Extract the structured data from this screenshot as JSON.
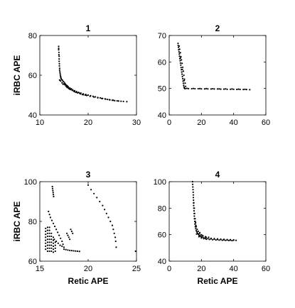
{
  "chart_data": [
    {
      "type": "scatter",
      "title": "1",
      "xlabel": "",
      "ylabel": "iRBC APE",
      "xlim": [
        10,
        30
      ],
      "ylim": [
        40,
        80
      ],
      "xticks": [
        10,
        20,
        30
      ],
      "yticks": [
        40,
        60,
        80
      ],
      "x_tick_labels": [
        "10",
        "20",
        "30"
      ],
      "y_tick_labels": [
        "40",
        "60",
        "80"
      ],
      "grid": false,
      "points": [
        [
          13.9,
          74.5
        ],
        [
          13.9,
          73.5
        ],
        [
          13.9,
          72.8
        ],
        [
          13.95,
          71.5
        ],
        [
          13.95,
          70.3
        ],
        [
          14.0,
          69.5
        ],
        [
          14.0,
          68.2
        ],
        [
          14.0,
          67.0
        ],
        [
          14.05,
          65.8
        ],
        [
          14.05,
          64.7
        ],
        [
          14.1,
          63.5
        ],
        [
          14.1,
          62.6
        ],
        [
          14.15,
          61.7
        ],
        [
          14.2,
          60.9
        ],
        [
          14.25,
          60.1
        ],
        [
          14.3,
          59.4
        ],
        [
          14.35,
          58.9
        ],
        [
          14.4,
          58.3
        ],
        [
          14.1,
          57.6
        ],
        [
          14.3,
          57.1
        ],
        [
          14.5,
          57.9
        ],
        [
          14.7,
          57.4
        ],
        [
          14.9,
          56.8
        ],
        [
          15.1,
          56.2
        ],
        [
          15.3,
          55.6
        ],
        [
          15.5,
          55.0
        ],
        [
          15.7,
          54.6
        ],
        [
          15.9,
          54.1
        ],
        [
          16.2,
          53.6
        ],
        [
          16.5,
          53.2
        ],
        [
          16.8,
          52.7
        ],
        [
          17.2,
          52.2
        ],
        [
          17.6,
          51.8
        ],
        [
          18.0,
          51.4
        ],
        [
          18.5,
          51.0
        ],
        [
          19.0,
          50.6
        ],
        [
          19.5,
          50.3
        ],
        [
          20.0,
          50.0
        ],
        [
          20.5,
          49.7
        ],
        [
          21.0,
          49.4
        ],
        [
          21.5,
          49.1
        ],
        [
          22.0,
          48.8
        ],
        [
          22.5,
          48.6
        ],
        [
          23.0,
          48.3
        ],
        [
          23.5,
          48.1
        ],
        [
          24.0,
          47.8
        ],
        [
          24.5,
          47.6
        ],
        [
          25.0,
          47.4
        ],
        [
          25.5,
          47.2
        ],
        [
          26.0,
          47.1
        ],
        [
          26.3,
          47.0
        ],
        [
          26.8,
          46.9
        ],
        [
          27.3,
          46.8
        ],
        [
          28.0,
          46.7
        ],
        [
          15.0,
          55.6
        ],
        [
          15.4,
          54.5
        ],
        [
          15.8,
          53.7
        ],
        [
          16.2,
          53.0
        ],
        [
          16.7,
          52.4
        ],
        [
          17.2,
          51.7
        ],
        [
          17.8,
          51.1
        ],
        [
          18.4,
          50.6
        ],
        [
          19.0,
          50.2
        ],
        [
          19.7,
          49.8
        ],
        [
          20.4,
          49.4
        ],
        [
          21.2,
          49.0
        ],
        [
          22.0,
          48.6
        ],
        [
          22.8,
          48.3
        ],
        [
          23.6,
          48.0
        ],
        [
          24.4,
          47.7
        ],
        [
          25.2,
          47.4
        ],
        [
          14.6,
          56.2
        ],
        [
          14.8,
          55.5
        ],
        [
          15.2,
          55.2
        ],
        [
          15.6,
          54.0
        ],
        [
          16.0,
          53.3
        ],
        [
          16.4,
          52.8
        ],
        [
          17.0,
          52.0
        ],
        [
          17.5,
          51.4
        ],
        [
          18.2,
          51.0
        ],
        [
          18.8,
          50.3
        ],
        [
          19.4,
          50.0
        ]
      ]
    },
    {
      "type": "scatter",
      "title": "2",
      "xlabel": "",
      "ylabel": "",
      "xlim": [
        0,
        60
      ],
      "ylim": [
        40,
        70
      ],
      "xticks": [
        0,
        20,
        40,
        60
      ],
      "yticks": [
        40,
        50,
        60,
        70
      ],
      "x_tick_labels": [
        "0",
        "20",
        "40",
        "60"
      ],
      "y_tick_labels": [
        "40",
        "50",
        "60",
        "70"
      ],
      "grid": false,
      "points": [
        [
          5.5,
          67.0
        ],
        [
          5.6,
          66.2
        ],
        [
          5.8,
          65.5
        ],
        [
          5.9,
          64.6
        ],
        [
          6.1,
          63.8
        ],
        [
          6.3,
          63.0
        ],
        [
          6.4,
          62.2
        ],
        [
          6.6,
          61.3
        ],
        [
          6.8,
          60.5
        ],
        [
          7.0,
          59.6
        ],
        [
          7.2,
          58.8
        ],
        [
          7.4,
          57.9
        ],
        [
          7.6,
          57.1
        ],
        [
          7.8,
          56.2
        ],
        [
          8.0,
          55.4
        ],
        [
          8.2,
          54.5
        ],
        [
          8.4,
          53.7
        ],
        [
          8.6,
          52.8
        ],
        [
          8.8,
          52.0
        ],
        [
          9.0,
          51.2
        ],
        [
          9.2,
          50.6
        ],
        [
          9.4,
          50.2
        ],
        [
          9.6,
          50.0
        ],
        [
          6.2,
          66.0
        ],
        [
          6.5,
          64.8
        ],
        [
          6.9,
          63.5
        ],
        [
          7.3,
          62.0
        ],
        [
          7.6,
          60.8
        ],
        [
          8.0,
          59.5
        ],
        [
          8.4,
          58.0
        ],
        [
          8.8,
          56.5
        ],
        [
          9.1,
          55.0
        ],
        [
          9.5,
          53.5
        ],
        [
          9.9,
          52.0
        ],
        [
          10.2,
          50.8
        ],
        [
          7.0,
          61.5
        ],
        [
          8.2,
          57.2
        ],
        [
          9.3,
          53.0
        ],
        [
          10,
          49.95
        ],
        [
          12,
          49.95
        ],
        [
          14,
          49.9
        ],
        [
          16,
          49.9
        ],
        [
          18,
          49.9
        ],
        [
          20,
          49.85
        ],
        [
          22,
          49.85
        ],
        [
          24,
          49.85
        ],
        [
          26,
          49.8
        ],
        [
          28,
          49.8
        ],
        [
          30,
          49.8
        ],
        [
          32,
          49.75
        ],
        [
          34,
          49.75
        ],
        [
          36,
          49.7
        ],
        [
          38,
          49.7
        ],
        [
          40,
          49.7
        ],
        [
          42,
          49.65
        ],
        [
          44,
          49.65
        ],
        [
          46,
          49.6
        ],
        [
          48,
          49.6
        ],
        [
          50,
          49.55
        ],
        [
          11,
          50.05
        ],
        [
          15,
          50.0
        ],
        [
          19,
          49.95
        ],
        [
          23,
          49.95
        ],
        [
          27,
          49.9
        ],
        [
          31,
          49.85
        ],
        [
          35,
          49.85
        ],
        [
          39,
          49.8
        ],
        [
          43,
          49.75
        ],
        [
          47,
          49.7
        ]
      ]
    },
    {
      "type": "scatter",
      "title": "3",
      "xlabel": "Retic APE",
      "ylabel": "iRBC APE",
      "xlim": [
        15,
        25
      ],
      "ylim": [
        60,
        100
      ],
      "xticks": [
        15,
        20,
        25
      ],
      "yticks": [
        60,
        80,
        100
      ],
      "x_tick_labels": [
        "15",
        "20",
        "25"
      ],
      "y_tick_labels": [
        "60",
        "80",
        "100"
      ],
      "grid": false,
      "points": [
        [
          15.6,
          66
        ],
        [
          15.6,
          67.5
        ],
        [
          15.6,
          69
        ],
        [
          15.6,
          70.5
        ],
        [
          15.6,
          72
        ],
        [
          15.6,
          73.5
        ],
        [
          15.6,
          75
        ],
        [
          15.6,
          76.5
        ],
        [
          15.8,
          65
        ],
        [
          15.8,
          66.5
        ],
        [
          15.8,
          68
        ],
        [
          15.8,
          69.5
        ],
        [
          15.8,
          71
        ],
        [
          15.8,
          72.5
        ],
        [
          15.8,
          74
        ],
        [
          15.8,
          75.5
        ],
        [
          15.8,
          77
        ],
        [
          16.0,
          65
        ],
        [
          16.0,
          66.5
        ],
        [
          16.0,
          68
        ],
        [
          16.0,
          69.5
        ],
        [
          16.0,
          71
        ],
        [
          16.0,
          72.5
        ],
        [
          16.0,
          74
        ],
        [
          16.0,
          75.5
        ],
        [
          16.0,
          77
        ],
        [
          16.2,
          65
        ],
        [
          16.2,
          66.5
        ],
        [
          16.2,
          68
        ],
        [
          16.2,
          69.5
        ],
        [
          16.2,
          71
        ],
        [
          16.2,
          72.5
        ],
        [
          16.2,
          74
        ],
        [
          16.4,
          64.5
        ],
        [
          16.4,
          66
        ],
        [
          16.4,
          67.5
        ],
        [
          16.4,
          69
        ],
        [
          16.4,
          70.5
        ],
        [
          16.4,
          72
        ],
        [
          16.6,
          65
        ],
        [
          16.6,
          66.5
        ],
        [
          16.6,
          68
        ],
        [
          16.6,
          69.5
        ],
        [
          15.9,
          85
        ],
        [
          16.0,
          83.5
        ],
        [
          16.1,
          82
        ],
        [
          16.25,
          80.5
        ],
        [
          16.4,
          79
        ],
        [
          16.55,
          77.5
        ],
        [
          16.7,
          76
        ],
        [
          16.85,
          74.5
        ],
        [
          17.0,
          73
        ],
        [
          17.15,
          71.5
        ],
        [
          17.3,
          70
        ],
        [
          17.4,
          68.5
        ],
        [
          17.5,
          67
        ],
        [
          16.5,
          71
        ],
        [
          16.7,
          70
        ],
        [
          16.9,
          69
        ],
        [
          17.1,
          68
        ],
        [
          17.3,
          67.5
        ],
        [
          17.5,
          66
        ],
        [
          17.7,
          65.8
        ],
        [
          17.9,
          65.6
        ],
        [
          18.1,
          65.4
        ],
        [
          18.3,
          65.3
        ],
        [
          18.5,
          65.2
        ],
        [
          18.7,
          65.1
        ],
        [
          18.9,
          65.0
        ],
        [
          19.1,
          64.9
        ],
        [
          17.8,
          74
        ],
        [
          17.9,
          73
        ],
        [
          18.0,
          72
        ],
        [
          18.1,
          71
        ],
        [
          18.2,
          76
        ],
        [
          18.3,
          75
        ],
        [
          18.4,
          74
        ],
        [
          16.3,
          97.5
        ],
        [
          16.32,
          96.5
        ],
        [
          16.35,
          95.5
        ],
        [
          16.38,
          94.5
        ],
        [
          16.4,
          93.5
        ],
        [
          16.43,
          92.5
        ],
        [
          20.0,
          98.3
        ],
        [
          20.3,
          96
        ],
        [
          20.6,
          94
        ],
        [
          20.9,
          92
        ],
        [
          21.2,
          90
        ],
        [
          21.5,
          88
        ],
        [
          21.7,
          86
        ],
        [
          21.9,
          84
        ],
        [
          22.1,
          82
        ],
        [
          22.3,
          80
        ],
        [
          22.5,
          78
        ],
        [
          22.6,
          76
        ],
        [
          22.7,
          74
        ],
        [
          22.8,
          72
        ],
        [
          22.85,
          70
        ],
        [
          22.9,
          67
        ],
        [
          24.9,
          65
        ]
      ]
    },
    {
      "type": "scatter",
      "title": "4",
      "xlabel": "Retic APE",
      "ylabel": "",
      "xlim": [
        0,
        60
      ],
      "ylim": [
        40,
        100
      ],
      "xticks": [
        0,
        20,
        40,
        60
      ],
      "yticks": [
        40,
        60,
        80,
        100
      ],
      "x_tick_labels": [
        "0",
        "20",
        "40",
        "60"
      ],
      "y_tick_labels": [
        "40",
        "60",
        "80",
        "100"
      ],
      "grid": false,
      "points": [
        [
          14.5,
          100
        ],
        [
          14.6,
          98
        ],
        [
          14.7,
          96
        ],
        [
          14.8,
          94
        ],
        [
          14.9,
          92
        ],
        [
          15.0,
          90
        ],
        [
          15.0,
          88
        ],
        [
          15.1,
          86
        ],
        [
          15.1,
          84
        ],
        [
          15.2,
          82
        ],
        [
          15.3,
          80
        ],
        [
          15.4,
          78
        ],
        [
          15.5,
          76
        ],
        [
          15.6,
          74
        ],
        [
          15.7,
          72
        ],
        [
          15.9,
          70
        ],
        [
          16.0,
          68
        ],
        [
          16.2,
          66
        ],
        [
          16.5,
          64.5
        ],
        [
          16.8,
          63
        ],
        [
          17.2,
          62
        ],
        [
          17.6,
          61
        ],
        [
          18.1,
          60.3
        ],
        [
          18.6,
          59.6
        ],
        [
          19.2,
          59
        ],
        [
          19.8,
          58.5
        ],
        [
          20.5,
          58
        ],
        [
          21.5,
          57.6
        ],
        [
          22.5,
          57.3
        ],
        [
          24,
          57
        ],
        [
          26,
          56.8
        ],
        [
          28,
          56.6
        ],
        [
          30,
          56.4
        ],
        [
          32,
          56.3
        ],
        [
          34,
          56.1
        ],
        [
          36,
          56.0
        ],
        [
          38,
          55.9
        ],
        [
          40,
          55.8
        ],
        [
          41.5,
          55.7
        ],
        [
          15.3,
          84
        ],
        [
          15.6,
          80
        ],
        [
          15.8,
          76
        ],
        [
          16.1,
          72
        ],
        [
          16.4,
          69
        ],
        [
          16.8,
          66
        ],
        [
          17.4,
          64
        ],
        [
          18.0,
          62.5
        ],
        [
          18.8,
          61
        ],
        [
          19.8,
          60
        ],
        [
          21,
          59
        ],
        [
          22.5,
          58.5
        ],
        [
          24.5,
          58
        ],
        [
          17.0,
          60.5
        ],
        [
          18.5,
          58.5
        ],
        [
          20.0,
          57.5
        ],
        [
          21.5,
          57
        ],
        [
          23,
          56.6
        ],
        [
          25,
          56.4
        ],
        [
          27,
          56.2
        ],
        [
          29,
          56.0
        ],
        [
          31,
          55.9
        ],
        [
          33,
          55.8
        ],
        [
          35,
          55.7
        ],
        [
          37,
          55.6
        ],
        [
          39,
          55.5
        ],
        [
          16.2,
          70
        ],
        [
          16.6,
          67
        ],
        [
          19.0,
          61.5
        ],
        [
          20.5,
          59.5
        ],
        [
          23,
          58
        ],
        [
          26,
          57.2
        ],
        [
          28,
          57.0
        ],
        [
          30,
          56.8
        ],
        [
          32,
          56.6
        ],
        [
          34,
          56.5
        ],
        [
          36,
          56.3
        ],
        [
          38,
          56.2
        ],
        [
          40,
          56.1
        ]
      ]
    }
  ]
}
